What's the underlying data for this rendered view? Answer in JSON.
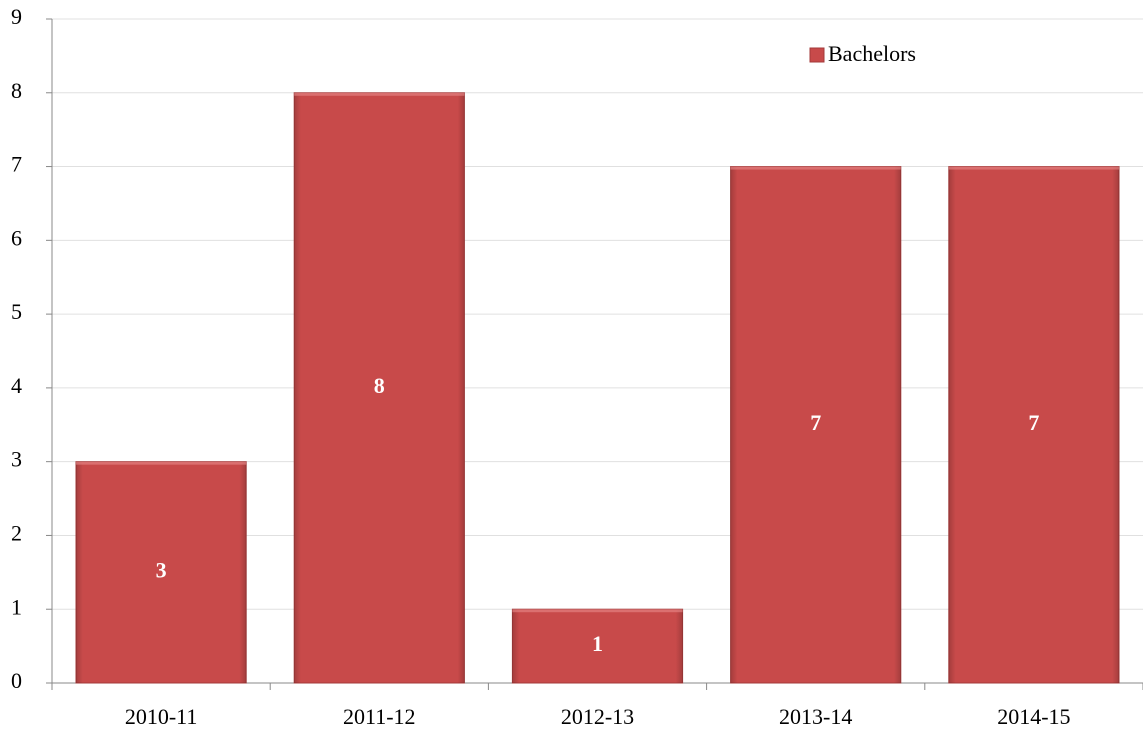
{
  "chart_data": {
    "type": "bar",
    "categories": [
      "2010-11",
      "2011-12",
      "2012-13",
      "2013-14",
      "2014-15"
    ],
    "series": [
      {
        "name": "Bachelors",
        "color": "#c84a4a",
        "values": [
          3,
          8,
          1,
          7,
          7
        ]
      }
    ],
    "ylim": [
      0,
      9
    ],
    "yticks": [
      0,
      1,
      2,
      3,
      4,
      5,
      6,
      7,
      8,
      9
    ],
    "grid": true,
    "legend": "top-right"
  }
}
